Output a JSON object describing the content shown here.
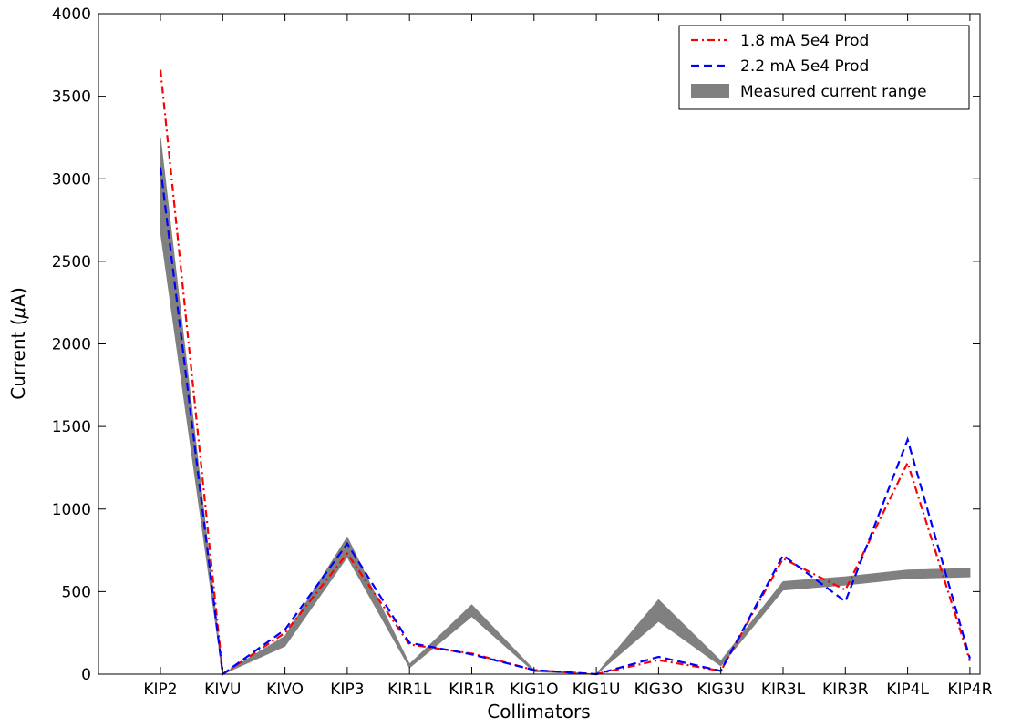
{
  "chart_data": {
    "type": "line",
    "title": "",
    "xlabel": "Collimators",
    "ylabel_main": "Current (",
    "ylabel_mu": "μ",
    "ylabel_unit": "A)",
    "categories": [
      "KIP2",
      "KIVU",
      "KIVO",
      "KIP3",
      "KIR1L",
      "KIR1R",
      "KIG1O",
      "KIG1U",
      "KIG3O",
      "KIG3U",
      "KIR3L",
      "KIR3R",
      "KIP4L",
      "KIP4R"
    ],
    "ylim": [
      0,
      4000
    ],
    "yticks": [
      0,
      500,
      1000,
      1500,
      2000,
      2500,
      3000,
      3500,
      4000
    ],
    "legend_position": "top-right",
    "series": [
      {
        "name": "1.8 mA 5e4 Prod",
        "color": "#ff0000",
        "style": "dash-dot",
        "values": [
          3660,
          0,
          250,
          730,
          180,
          125,
          25,
          0,
          85,
          20,
          700,
          510,
          1280,
          80
        ]
      },
      {
        "name": "2.2 mA 5e4 Prod",
        "color": "#0000ff",
        "style": "dashed",
        "values": [
          3070,
          0,
          270,
          790,
          190,
          120,
          25,
          0,
          105,
          20,
          720,
          440,
          1420,
          95
        ]
      }
    ],
    "band": {
      "name": "Measured current range",
      "color": "#808080",
      "lower": [
        2680,
        0,
        170,
        710,
        40,
        350,
        15,
        0,
        320,
        50,
        510,
        540,
        580,
        590
      ],
      "upper": [
        3250,
        0,
        230,
        830,
        60,
        420,
        25,
        0,
        450,
        80,
        560,
        590,
        630,
        640
      ]
    }
  }
}
